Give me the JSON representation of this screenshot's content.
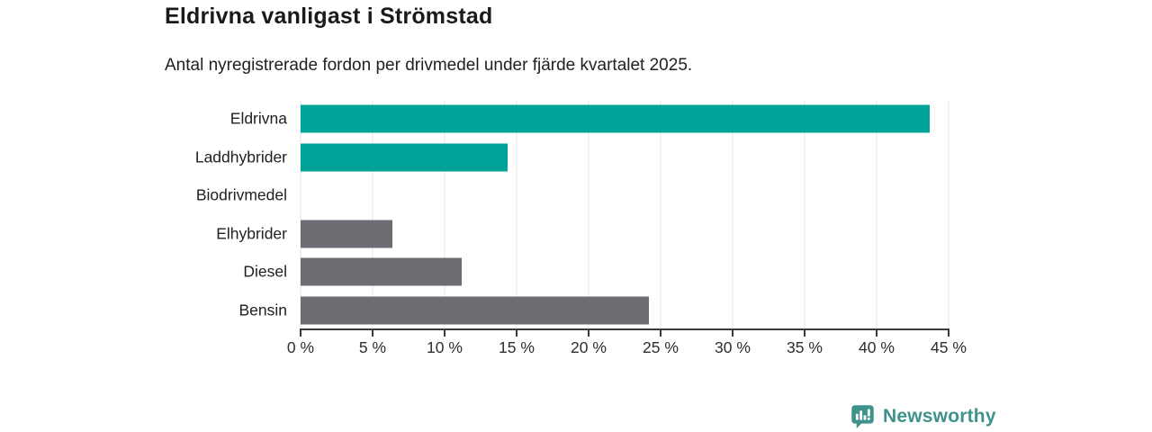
{
  "header": {
    "title": "Eldrivna vanligast i Strömstad",
    "subtitle": "Antal nyregistrerade fordon per drivmedel under fjärde kvartalet 2025."
  },
  "chart_data": {
    "type": "bar",
    "orientation": "horizontal",
    "title": "Eldrivna vanligast i Strömstad",
    "subtitle": "Antal nyregistrerade fordon per drivmedel under fjärde kvartalet 2025.",
    "categories": [
      "Eldrivna",
      "Laddhybrider",
      "Biodrivmedel",
      "Elhybrider",
      "Diesel",
      "Bensin"
    ],
    "values": [
      43.7,
      14.4,
      0,
      6.4,
      11.2,
      24.2
    ],
    "unit": "%",
    "bar_colors": [
      "#00a399",
      "#00a399",
      "#6c6c72",
      "#6c6c72",
      "#6c6c72",
      "#6c6c72"
    ],
    "xlim": [
      0,
      45
    ],
    "x_tick_values": [
      0,
      5,
      10,
      15,
      20,
      25,
      30,
      35,
      40,
      45
    ],
    "x_ticks": [
      "0 %",
      "5 %",
      "10 %",
      "15 %",
      "20 %",
      "25 %",
      "30 %",
      "35 %",
      "40 %",
      "45 %"
    ],
    "grid": true,
    "legend": "none"
  },
  "colors": {
    "accent_teal": "#00a399",
    "muted_gray": "#6c6c72",
    "gridline": "#e4e4e4",
    "axis": "#3a3a3a",
    "brand_teal": "#3e928b"
  },
  "footer": {
    "brand_label": "Newsworthy"
  }
}
